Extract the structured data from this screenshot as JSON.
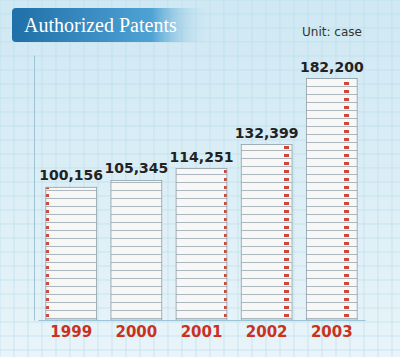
{
  "chart_data": {
    "type": "bar",
    "title": "Authorized Patents",
    "annotations": [
      "Unit: case"
    ],
    "categories": [
      "1999",
      "2000",
      "2001",
      "2002",
      "2003"
    ],
    "values": [
      100156,
      105345,
      114251,
      132399,
      182200
    ],
    "value_labels": [
      "100,156",
      "105,345",
      "114,251",
      "132,399",
      "182,200"
    ],
    "color": "#f7f7f7",
    "ylim": [
      0,
      200000
    ],
    "data_labels": true,
    "tick_labels": "x"
  }
}
